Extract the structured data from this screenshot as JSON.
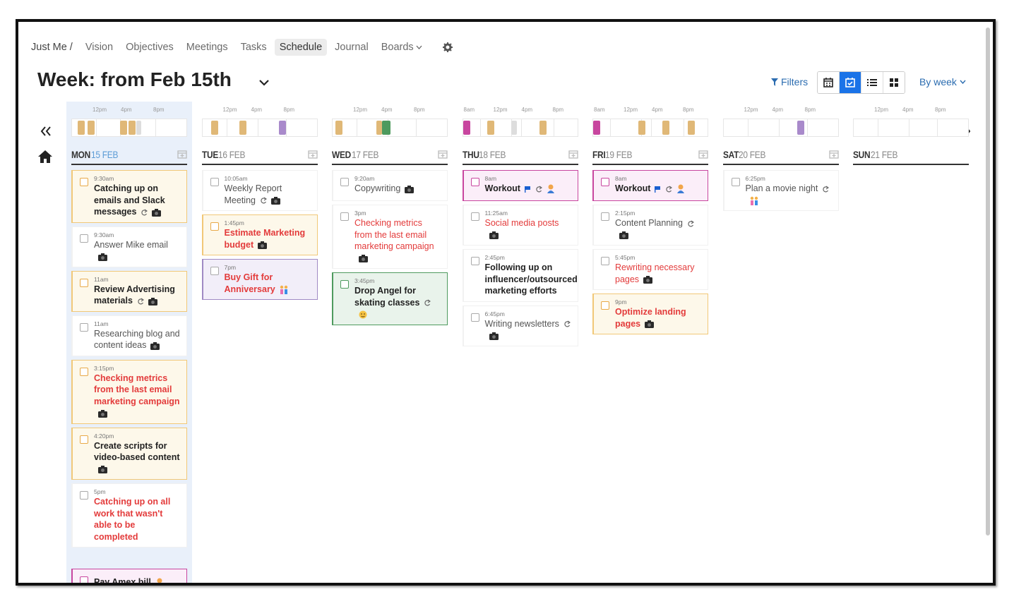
{
  "nav": {
    "items": [
      "Just Me /",
      "Vision",
      "Objectives",
      "Meetings",
      "Tasks",
      "Schedule",
      "Journal",
      "Boards"
    ],
    "active": 5
  },
  "header": {
    "title": "Week: from Feb 15th",
    "filters": "Filters",
    "view_mode": "By week"
  },
  "days": [
    {
      "weekday": "MON",
      "date": "15 FEB",
      "today": true,
      "timeline": [
        "12pm",
        "4pm",
        "8pm"
      ],
      "tasks": [
        {
          "time": "9:30am",
          "title": "Catching up on emails and Slack messages",
          "bold": true,
          "color": "dark",
          "style": "yellow",
          "icons": [
            "repeat",
            "camera"
          ]
        },
        {
          "time": "9:30am",
          "title": "Answer Mike email",
          "bold": false,
          "color": "dark",
          "style": "white",
          "icons": [
            "camera"
          ]
        },
        {
          "time": "11am",
          "title": "Review Advertising materials",
          "bold": true,
          "color": "dark",
          "style": "yellow",
          "icons": [
            "repeat",
            "camera"
          ]
        },
        {
          "time": "11am",
          "title": "Researching blog and content ideas",
          "bold": false,
          "color": "dark",
          "style": "white",
          "icons": [
            "camera"
          ]
        },
        {
          "time": "3:15pm",
          "title": "Checking metrics from the last email marketing campaign",
          "bold": true,
          "color": "red",
          "style": "yellow",
          "icons": [
            "camera"
          ]
        },
        {
          "time": "4:20pm",
          "title": "Create scripts for video-based content",
          "bold": true,
          "color": "dark",
          "style": "yellow",
          "icons": [
            "camera"
          ]
        },
        {
          "time": "5pm",
          "title": "Catching up on all work that wasn't able to be completed",
          "bold": true,
          "color": "red",
          "style": "white",
          "icons": []
        },
        {
          "title": "Pay Amex bill",
          "bold": true,
          "color": "dark",
          "style": "pink",
          "icons": [
            "person"
          ]
        }
      ]
    },
    {
      "weekday": "TUE",
      "date": "16 FEB",
      "today": false,
      "timeline": [
        "12pm",
        "4pm",
        "8pm"
      ],
      "tasks": [
        {
          "time": "10:05am",
          "title": "Weekly Report Meeting",
          "bold": false,
          "color": "dark",
          "style": "white",
          "icons": [
            "repeat",
            "camera"
          ]
        },
        {
          "time": "1:45pm",
          "title": "Estimate Marketing budget",
          "bold": true,
          "color": "red",
          "style": "yellow",
          "icons": [
            "camera"
          ]
        },
        {
          "time": "7pm",
          "title": "Buy Gift for Anniversary",
          "bold": true,
          "color": "red",
          "style": "lavender",
          "icons": [
            "people"
          ]
        }
      ]
    },
    {
      "weekday": "WED",
      "date": "17 FEB",
      "today": false,
      "timeline": [
        "12pm",
        "4pm",
        "8pm"
      ],
      "tasks": [
        {
          "time": "9:20am",
          "title": "Copywriting",
          "bold": false,
          "color": "dark",
          "style": "white",
          "icons": [
            "camera"
          ]
        },
        {
          "time": "3pm",
          "title": "Checking metrics from the last email marketing campaign",
          "bold": false,
          "color": "red",
          "style": "white",
          "icons": [
            "camera"
          ]
        },
        {
          "time": "3:45pm",
          "title": "Drop Angel for skating classes",
          "bold": true,
          "color": "dark",
          "style": "green",
          "icons": [
            "repeat",
            "face"
          ]
        }
      ]
    },
    {
      "weekday": "THU",
      "date": "18 FEB",
      "today": false,
      "timeline": [
        "8am",
        "12pm",
        "4pm",
        "8pm"
      ],
      "tasks": [
        {
          "time": "8am",
          "title": "Workout",
          "bold": true,
          "color": "dark",
          "style": "pink",
          "icons": [
            "flag",
            "repeat",
            "person"
          ]
        },
        {
          "time": "11:25am",
          "title": "Social media posts",
          "bold": false,
          "color": "red",
          "style": "white",
          "icons": [
            "camera"
          ]
        },
        {
          "time": "2:45pm",
          "title": "Following up on influencer/outsourced marketing efforts",
          "bold": true,
          "color": "dark",
          "style": "white",
          "icons": []
        },
        {
          "time": "6:45pm",
          "title": "Writing newsletters",
          "bold": false,
          "color": "dark",
          "style": "white",
          "icons": [
            "repeat",
            "camera"
          ]
        }
      ]
    },
    {
      "weekday": "FRI",
      "date": "19 FEB",
      "today": false,
      "timeline": [
        "8am",
        "12pm",
        "4pm",
        "8pm"
      ],
      "tasks": [
        {
          "time": "8am",
          "title": "Workout",
          "bold": true,
          "color": "dark",
          "style": "pink",
          "icons": [
            "flag",
            "repeat",
            "person"
          ]
        },
        {
          "time": "2:15pm",
          "title": "Content Planning",
          "bold": false,
          "color": "dark",
          "style": "white",
          "icons": [
            "repeat",
            "camera"
          ]
        },
        {
          "time": "5:45pm",
          "title": "Rewriting necessary pages",
          "bold": false,
          "color": "red",
          "style": "white",
          "icons": [
            "camera"
          ]
        },
        {
          "time": "9pm",
          "title": "Optimize landing pages",
          "bold": true,
          "color": "red",
          "style": "yellow",
          "icons": [
            "camera"
          ]
        }
      ]
    },
    {
      "weekday": "SAT",
      "date": "20 FEB",
      "today": false,
      "timeline": [
        "12pm",
        "4pm",
        "8pm"
      ],
      "tasks": [
        {
          "time": "6:25pm",
          "title": "Plan a movie night",
          "bold": false,
          "color": "dark",
          "style": "white",
          "icons": [
            "repeat",
            "people"
          ]
        }
      ]
    },
    {
      "weekday": "SUN",
      "date": "21 FEB",
      "today": false,
      "timeline": [
        "12pm",
        "4pm",
        "8pm"
      ],
      "tasks": []
    }
  ]
}
